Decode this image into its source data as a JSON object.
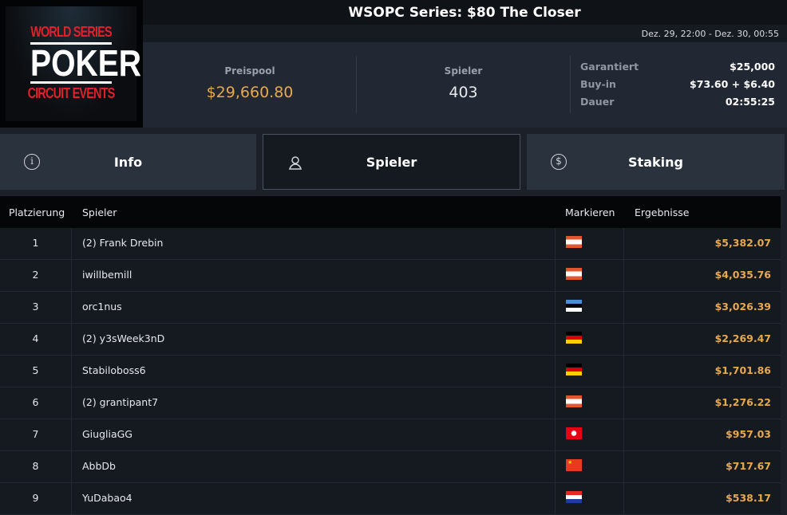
{
  "title": "WSOPC Series: $80 The Closer",
  "date_range": "Dez. 29, 22:00 - Dez. 30, 00:55",
  "logo": {
    "line1": "WORLD SERIES",
    "line2": "POKER",
    "line3": "CIRCUIT EVENTS"
  },
  "stats": {
    "prizepool": {
      "label": "Preispool",
      "value": "$29,660.80"
    },
    "players": {
      "label": "Spieler",
      "value": "403"
    },
    "details": [
      {
        "label": "Garantiert",
        "value": "$25,000"
      },
      {
        "label": "Buy-in",
        "value": "$73.60 + $6.40"
      },
      {
        "label": "Dauer",
        "value": "02:55:25"
      }
    ]
  },
  "tabs": [
    {
      "label": "Info",
      "icon": "info-icon"
    },
    {
      "label": "Spieler",
      "icon": "user-icon",
      "active": true
    },
    {
      "label": "Staking",
      "icon": "dollar-coin-icon"
    }
  ],
  "table": {
    "headers": [
      "Platzierung",
      "Spieler",
      "Markieren",
      "Ergebnisse"
    ],
    "rows": [
      {
        "place": "1",
        "name": "(2) Frank Drebin",
        "flag": "at",
        "result": "$5,382.07"
      },
      {
        "place": "2",
        "name": "iwillbemill",
        "flag": "at",
        "result": "$4,035.76"
      },
      {
        "place": "3",
        "name": "orc1nus",
        "flag": "ee",
        "result": "$3,026.39"
      },
      {
        "place": "4",
        "name": "(2) y3sWeek3nD",
        "flag": "de",
        "result": "$2,269.47"
      },
      {
        "place": "5",
        "name": "Stabiloboss6",
        "flag": "de",
        "result": "$1,701.86"
      },
      {
        "place": "6",
        "name": "(2) grantipant7",
        "flag": "at",
        "result": "$1,276.22"
      },
      {
        "place": "7",
        "name": "GiugliaGG",
        "flag": "tn",
        "result": "$957.03"
      },
      {
        "place": "8",
        "name": "AbbDb",
        "flag": "cn",
        "result": "$717.67"
      },
      {
        "place": "9",
        "name": "YuDabao4",
        "flag": "hr",
        "result": "$538.17"
      }
    ]
  },
  "colors": {
    "accent": "#e8a94a",
    "background": "#1b2029"
  }
}
